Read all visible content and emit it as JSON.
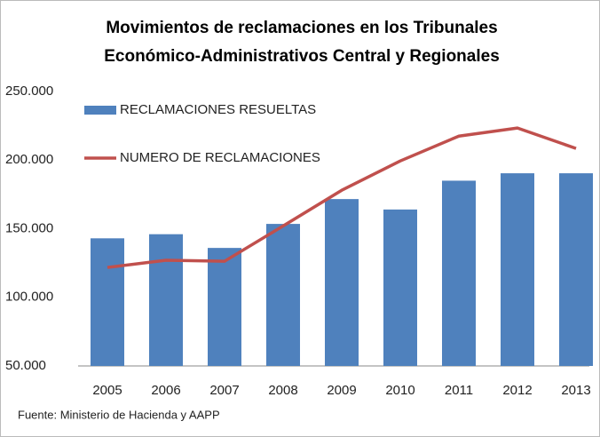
{
  "chart_data": {
    "type": "bar+line",
    "title": [
      "Movimientos de reclamaciones en los Tribunales",
      "Económico-Administrativos Central y Regionales"
    ],
    "categories": [
      "2005",
      "2006",
      "2007",
      "2008",
      "2009",
      "2010",
      "2011",
      "2012",
      "2013"
    ],
    "series": [
      {
        "name": "RECLAMACIONES RESUELTAS",
        "type": "bar",
        "color": "#4f81bd",
        "values": [
          143000,
          146000,
          136000,
          153500,
          171600,
          164000,
          185000,
          190400,
          190400
        ]
      },
      {
        "name": "NUMERO DE RECLAMACIONES",
        "type": "line",
        "color": "#c0504d",
        "values": [
          121800,
          127000,
          126300,
          152000,
          178000,
          199400,
          217500,
          223400,
          208500
        ]
      }
    ],
    "ylim": [
      50000,
      250000
    ],
    "yticks": [
      {
        "value": 50000,
        "label": "50.000"
      },
      {
        "value": 100000,
        "label": "100.000"
      },
      {
        "value": 150000,
        "label": "150.000"
      },
      {
        "value": 200000,
        "label": "200.000"
      },
      {
        "value": 250000,
        "label": "250.000"
      }
    ],
    "legend": "top-left",
    "source": "Fuente:  Ministerio de  Hacienda y AAPP"
  }
}
